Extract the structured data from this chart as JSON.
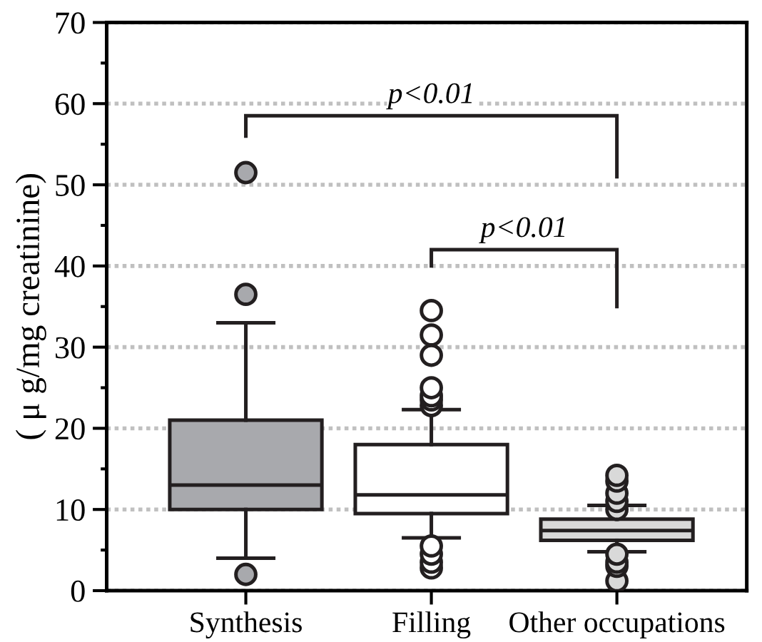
{
  "chart_data": {
    "type": "box",
    "ylabel": "( μ g/mg creatinine)",
    "categories": [
      "Synthesis",
      "Filling",
      "Other occupations"
    ],
    "colors": [
      "#a8a9ad",
      "#ffffff",
      "#d9d9d9"
    ],
    "boxes": [
      {
        "low": 4,
        "q1": 10,
        "median": 13,
        "q3": 21,
        "high": 33,
        "outliers": [
          2,
          36.5,
          51.5
        ]
      },
      {
        "low": 6.5,
        "q1": 9.5,
        "median": 11.8,
        "q3": 18,
        "high": 22.3,
        "outliers": [
          2.8,
          3.5,
          4.5,
          5.5,
          22.8,
          23.5,
          24,
          25,
          29,
          31.5,
          34.5
        ]
      },
      {
        "low": 4.8,
        "q1": 6.2,
        "median": 7.4,
        "q3": 8.8,
        "high": 10.5,
        "outliers": [
          1.2,
          3,
          3.5,
          4.5,
          10,
          11,
          12,
          13.5,
          14.2
        ]
      }
    ],
    "ylim": [
      0,
      70
    ],
    "yticks": [
      0,
      {
        "value": 5,
        "label": null
      },
      10,
      {
        "value": 15,
        "label": null
      },
      20,
      {
        "value": 25,
        "label": null
      },
      30,
      {
        "value": 35,
        "label": null
      },
      40,
      {
        "value": 45,
        "label": null
      },
      50,
      {
        "value": 55,
        "label": null
      },
      60,
      {
        "value": 65,
        "label": null
      },
      70
    ],
    "grid": "y",
    "annotations": [
      "p<0.01",
      "p<0.01"
    ]
  }
}
